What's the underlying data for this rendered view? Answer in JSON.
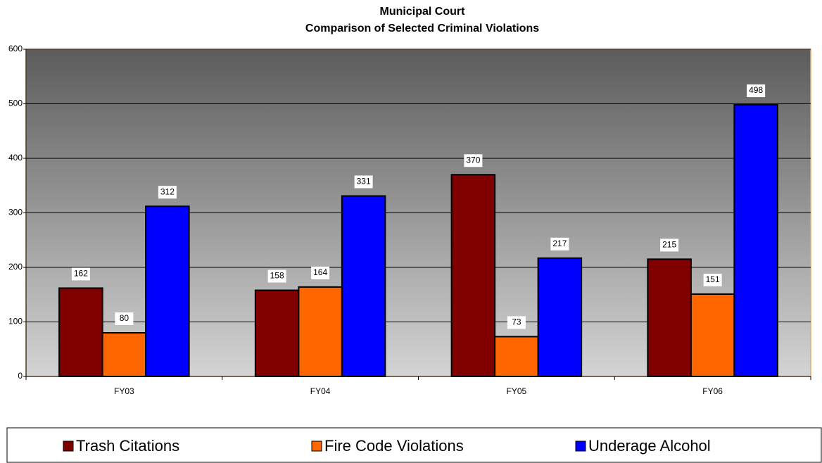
{
  "chart_data": {
    "type": "bar",
    "title": "Municipal Court",
    "subtitle": "Comparison of Selected Criminal Violations",
    "categories": [
      "FY03",
      "FY04",
      "FY05",
      "FY06"
    ],
    "series": [
      {
        "name": "Trash Citations",
        "color": "#800000",
        "values": [
          162,
          158,
          370,
          215
        ]
      },
      {
        "name": "Fire Code Violations",
        "color": "#ff6600",
        "values": [
          80,
          164,
          73,
          151
        ]
      },
      {
        "name": "Underage Alcohol",
        "color": "#0000ff",
        "values": [
          312,
          331,
          217,
          498
        ]
      }
    ],
    "ylim": [
      0,
      600
    ],
    "yticks": [
      0,
      100,
      200,
      300,
      400,
      500,
      600
    ],
    "grid": true,
    "legend": "bottom"
  }
}
